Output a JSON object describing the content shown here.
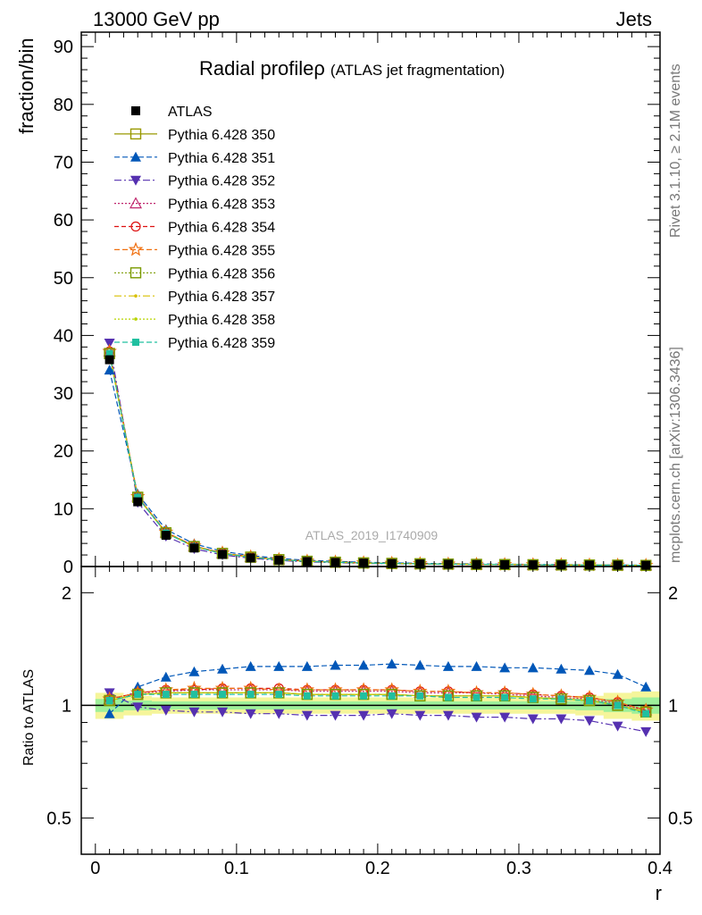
{
  "header": {
    "left": "13000 GeV pp",
    "right": "Jets"
  },
  "side": {
    "rivet": "Rivet 3.1.10, ≥ 2.1M events",
    "mcplots": "mcplots.cern.ch [arXiv:1306.3436]"
  },
  "watermark": "ATLAS_2019_I1740909",
  "chart_data": {
    "type": "line",
    "title": "Radial profile",
    "title_symbol": "ρ",
    "subtitle": "(ATLAS jet fragmentation)",
    "xlabel": "r",
    "ylabel_main": "fraction/bin",
    "ylabel_ratio": "Ratio to ATLAS",
    "xlim": [
      -0.01,
      0.4
    ],
    "ylim_main": [
      0,
      92.5
    ],
    "ylim_ratio": [
      0.4,
      2.35
    ],
    "ratio_log": true,
    "x_ticks": [
      0,
      0.1,
      0.2,
      0.3,
      0.4
    ],
    "x_tick_labels": [
      "0",
      "0.1",
      "0.2",
      "0.3",
      "0.4"
    ],
    "y_ticks_main": [
      0,
      10,
      20,
      30,
      40,
      50,
      60,
      70,
      80,
      90
    ],
    "y_tick_labels_main": [
      "0",
      "10",
      "20",
      "30",
      "40",
      "50",
      "60",
      "70",
      "80",
      "90"
    ],
    "y_ticks_ratio": [
      0.5,
      1,
      2
    ],
    "y_tick_labels_ratio": [
      "0.5",
      "1",
      "2"
    ],
    "x": [
      0.01,
      0.03,
      0.05,
      0.07,
      0.09,
      0.11,
      0.13,
      0.15,
      0.17,
      0.19,
      0.21,
      0.23,
      0.25,
      0.27,
      0.29,
      0.31,
      0.33,
      0.35,
      0.37,
      0.39
    ],
    "data": {
      "name": "ATLAS",
      "values": [
        35.8,
        11.2,
        5.4,
        3.2,
        2.1,
        1.5,
        1.1,
        0.85,
        0.7,
        0.58,
        0.5,
        0.44,
        0.39,
        0.35,
        0.32,
        0.29,
        0.27,
        0.25,
        0.23,
        0.21
      ],
      "band_outer": [
        0.08,
        0.06,
        0.05,
        0.05,
        0.05,
        0.05,
        0.05,
        0.05,
        0.05,
        0.05,
        0.05,
        0.05,
        0.05,
        0.05,
        0.05,
        0.05,
        0.05,
        0.06,
        0.08,
        0.09
      ],
      "band_inner": [
        0.04,
        0.03,
        0.025,
        0.025,
        0.025,
        0.025,
        0.025,
        0.025,
        0.025,
        0.025,
        0.025,
        0.025,
        0.025,
        0.025,
        0.025,
        0.025,
        0.025,
        0.03,
        0.04,
        0.05
      ]
    },
    "series": [
      {
        "name": "Pythia 6.428 350",
        "color": "#999900",
        "marker": "square-open",
        "dash": "",
        "ratio": [
          1.03,
          1.07,
          1.08,
          1.08,
          1.08,
          1.08,
          1.08,
          1.07,
          1.07,
          1.07,
          1.07,
          1.06,
          1.06,
          1.06,
          1.06,
          1.05,
          1.04,
          1.03,
          1.0,
          0.96
        ]
      },
      {
        "name": "Pythia 6.428 351",
        "color": "#0057b8",
        "marker": "triangle-up",
        "dash": "6,3",
        "ratio": [
          0.95,
          1.12,
          1.19,
          1.23,
          1.25,
          1.27,
          1.27,
          1.27,
          1.28,
          1.28,
          1.29,
          1.28,
          1.27,
          1.27,
          1.26,
          1.26,
          1.25,
          1.24,
          1.21,
          1.12
        ]
      },
      {
        "name": "Pythia 6.428 352",
        "color": "#5530b0",
        "marker": "triangle-down",
        "dash": "8,3,2,3",
        "ratio": [
          1.08,
          0.99,
          0.97,
          0.96,
          0.96,
          0.95,
          0.95,
          0.94,
          0.94,
          0.94,
          0.95,
          0.94,
          0.94,
          0.93,
          0.93,
          0.92,
          0.92,
          0.91,
          0.88,
          0.85
        ]
      },
      {
        "name": "Pythia 6.428 353",
        "color": "#c0286e",
        "marker": "triangle-open",
        "dash": "2,2",
        "ratio": [
          1.04,
          1.08,
          1.09,
          1.1,
          1.1,
          1.1,
          1.1,
          1.09,
          1.09,
          1.09,
          1.09,
          1.08,
          1.08,
          1.08,
          1.07,
          1.06,
          1.05,
          1.04,
          1.01,
          0.97
        ]
      },
      {
        "name": "Pythia 6.428 354",
        "color": "#dd1111",
        "marker": "circle-open",
        "dash": "5,3",
        "ratio": [
          1.04,
          1.08,
          1.1,
          1.1,
          1.11,
          1.11,
          1.11,
          1.1,
          1.1,
          1.1,
          1.1,
          1.09,
          1.09,
          1.08,
          1.08,
          1.07,
          1.06,
          1.05,
          1.02,
          0.97
        ]
      },
      {
        "name": "Pythia 6.428 355",
        "color": "#f07010",
        "marker": "star-open",
        "dash": "6,3",
        "ratio": [
          1.04,
          1.08,
          1.1,
          1.11,
          1.11,
          1.11,
          1.1,
          1.1,
          1.1,
          1.1,
          1.1,
          1.09,
          1.09,
          1.08,
          1.08,
          1.07,
          1.06,
          1.05,
          1.02,
          0.97
        ]
      },
      {
        "name": "Pythia 6.428 356",
        "color": "#7a9a00",
        "marker": "square-open",
        "dash": "2,2",
        "ratio": [
          1.03,
          1.07,
          1.08,
          1.08,
          1.08,
          1.08,
          1.08,
          1.07,
          1.07,
          1.07,
          1.07,
          1.06,
          1.06,
          1.06,
          1.06,
          1.05,
          1.04,
          1.03,
          1.0,
          0.96
        ]
      },
      {
        "name": "Pythia 6.428 357",
        "color": "#d8c000",
        "marker": "dot",
        "dash": "8,3,2,3",
        "ratio": [
          1.03,
          1.07,
          1.08,
          1.08,
          1.08,
          1.08,
          1.08,
          1.07,
          1.07,
          1.07,
          1.07,
          1.06,
          1.06,
          1.06,
          1.06,
          1.05,
          1.04,
          1.03,
          1.0,
          0.96
        ]
      },
      {
        "name": "Pythia 6.428 358",
        "color": "#b8d400",
        "marker": "dot",
        "dash": "2,2",
        "ratio": [
          1.03,
          1.07,
          1.08,
          1.08,
          1.08,
          1.08,
          1.08,
          1.07,
          1.07,
          1.07,
          1.07,
          1.06,
          1.06,
          1.06,
          1.06,
          1.05,
          1.04,
          1.03,
          1.0,
          0.96
        ]
      },
      {
        "name": "Pythia 6.428 359",
        "color": "#20c0a0",
        "marker": "square-filled",
        "dash": "6,3",
        "ratio": [
          1.03,
          1.07,
          1.07,
          1.07,
          1.07,
          1.07,
          1.07,
          1.06,
          1.06,
          1.06,
          1.06,
          1.06,
          1.05,
          1.05,
          1.05,
          1.04,
          1.04,
          1.03,
          1.0,
          0.95
        ]
      }
    ]
  }
}
